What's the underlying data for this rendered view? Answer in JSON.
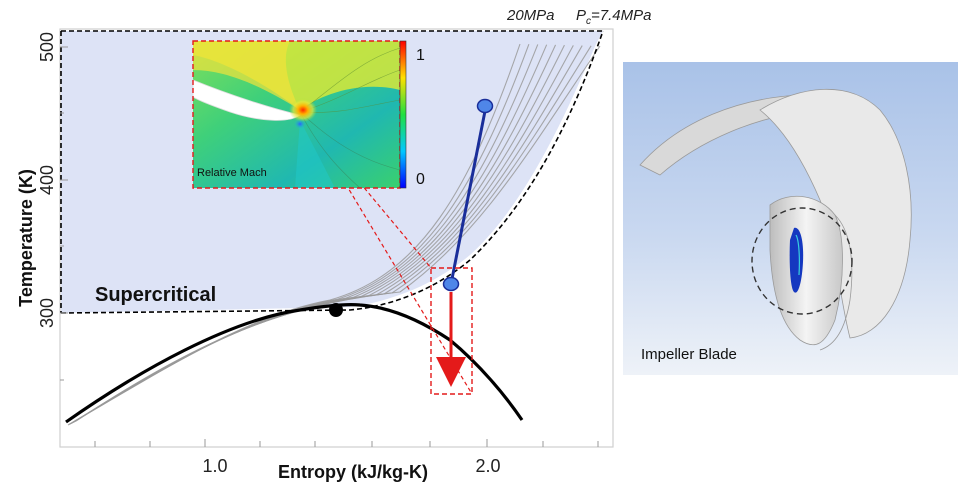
{
  "chart_data": {
    "type": "line",
    "xlabel": "Entropy (kJ/kg-K)",
    "ylabel": "Temperature (K)",
    "xlim": [
      0.55,
      2.55
    ],
    "ylim": [
      220,
      505
    ],
    "x_ticks": [
      "1.0",
      "2.0"
    ],
    "y_ticks": [
      "300",
      "400",
      "500"
    ],
    "annotations": {
      "region": "Supercritical",
      "isobar_high": "20MPa",
      "isobar_crit_prefix": "P",
      "isobar_crit_sub": "c",
      "isobar_crit_value": "=7.4MPa"
    },
    "critical_point": {
      "s": 1.4,
      "T": 304
    },
    "compression_path": {
      "start": {
        "s": 1.99,
        "T": 450
      },
      "end": {
        "s": 1.87,
        "T": 319
      }
    },
    "expansion_arrow": {
      "s": 1.87,
      "T_from": 310,
      "T_to": 249
    },
    "saturation_dome": [
      [
        0.55,
        231
      ],
      [
        0.8,
        258
      ],
      [
        1.0,
        282
      ],
      [
        1.2,
        300
      ],
      [
        1.4,
        304
      ],
      [
        1.6,
        298
      ],
      [
        1.8,
        279
      ],
      [
        2.0,
        254
      ],
      [
        2.2,
        232
      ]
    ]
  },
  "inset": {
    "label": "Relative Mach",
    "scale_max": "1",
    "scale_min": "0"
  },
  "impeller": {
    "label": "Impeller Blade"
  },
  "colors": {
    "supercritical_fill": "#dde3f6",
    "isobar": "#9a9a9a",
    "dome": "#000000",
    "path": "#1a2e9a",
    "point": "#4f86e8",
    "arrow": "#e41a1a"
  }
}
